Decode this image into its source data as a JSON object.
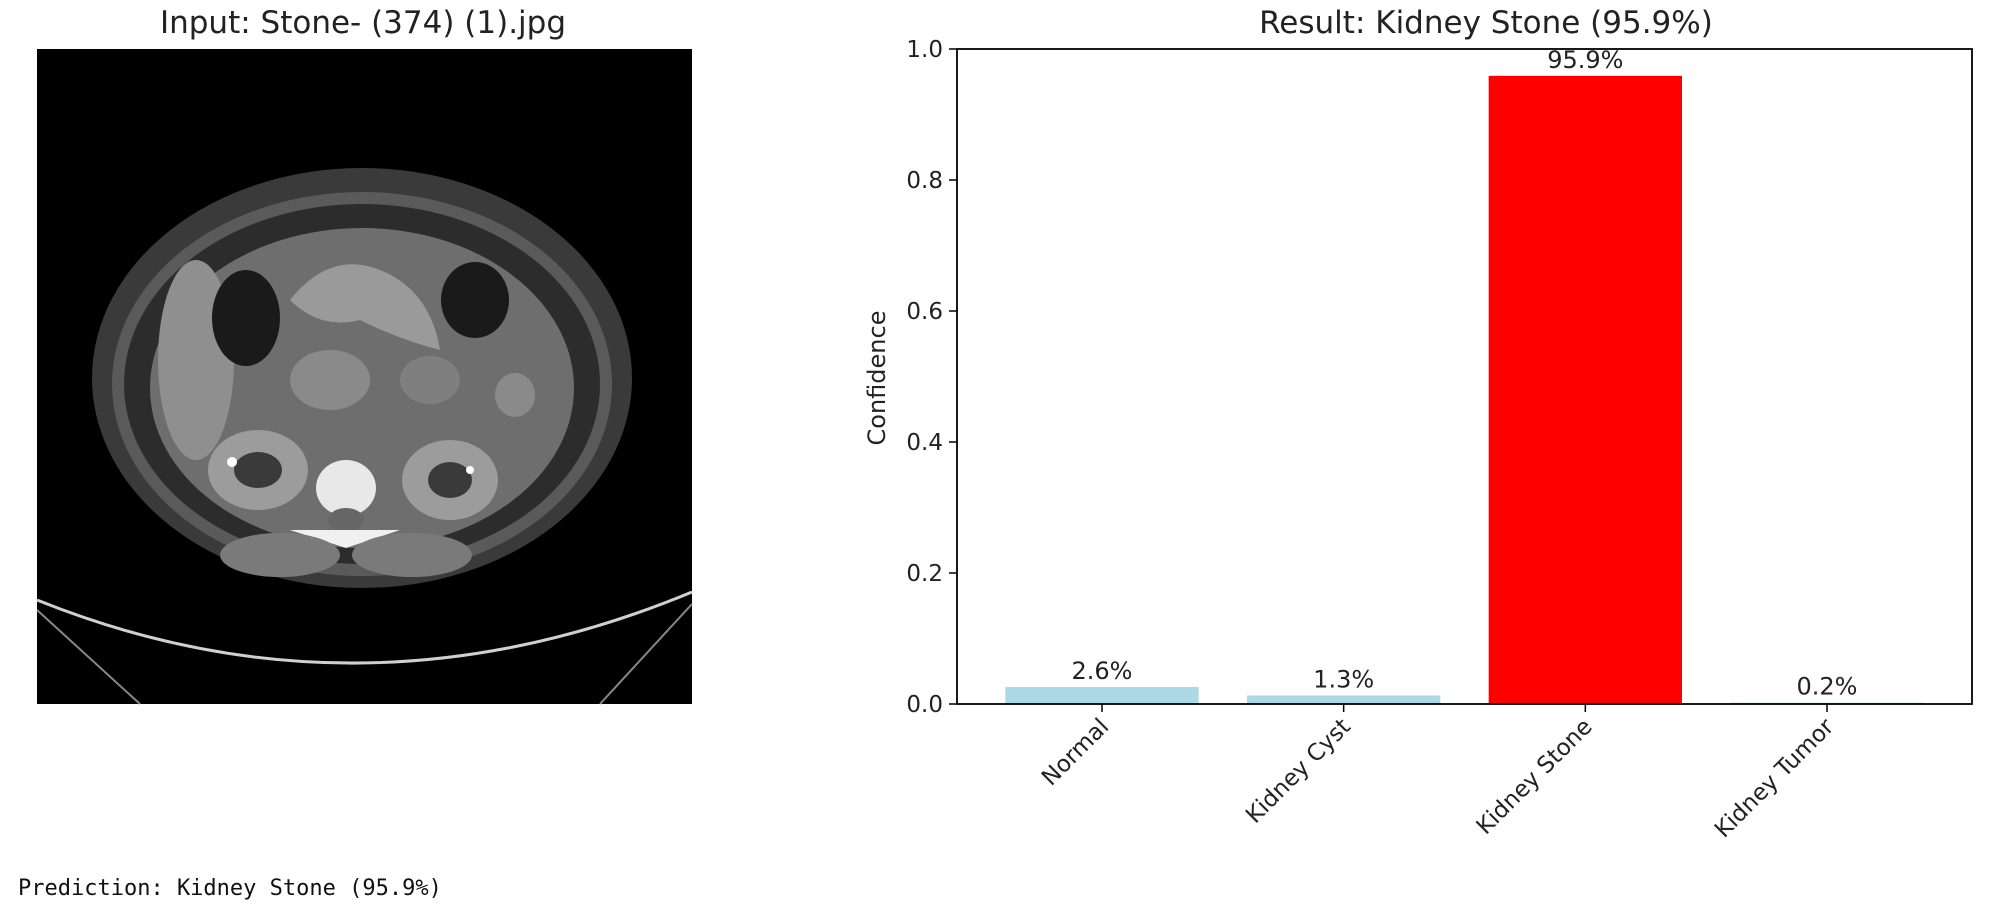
{
  "left_panel": {
    "title": "Input: Stone- (374) (1).jpg",
    "image_alt": "axial abdominal CT slice"
  },
  "chart_data": {
    "type": "bar",
    "title": "Result: Kidney Stone (95.9%)",
    "xlabel": "",
    "ylabel": "Confidence",
    "categories": [
      "Normal",
      "Kidney Cyst",
      "Kidney Stone",
      "Kidney Tumor"
    ],
    "values": [
      0.026,
      0.013,
      0.959,
      0.002
    ],
    "value_labels": [
      "2.6%",
      "1.3%",
      "95.9%",
      "0.2%"
    ],
    "bar_colors": [
      "#add8e6",
      "#add8e6",
      "#ff0000",
      "#add8e6"
    ],
    "ylim": [
      0,
      1.0
    ],
    "yticks": [
      0.0,
      0.2,
      0.4,
      0.6,
      0.8,
      1.0
    ],
    "ytick_labels": [
      "0.0",
      "0.2",
      "0.4",
      "0.6",
      "0.8",
      "1.0"
    ],
    "grid": false
  },
  "output": {
    "text": "Prediction: Kidney Stone (95.9%)"
  }
}
